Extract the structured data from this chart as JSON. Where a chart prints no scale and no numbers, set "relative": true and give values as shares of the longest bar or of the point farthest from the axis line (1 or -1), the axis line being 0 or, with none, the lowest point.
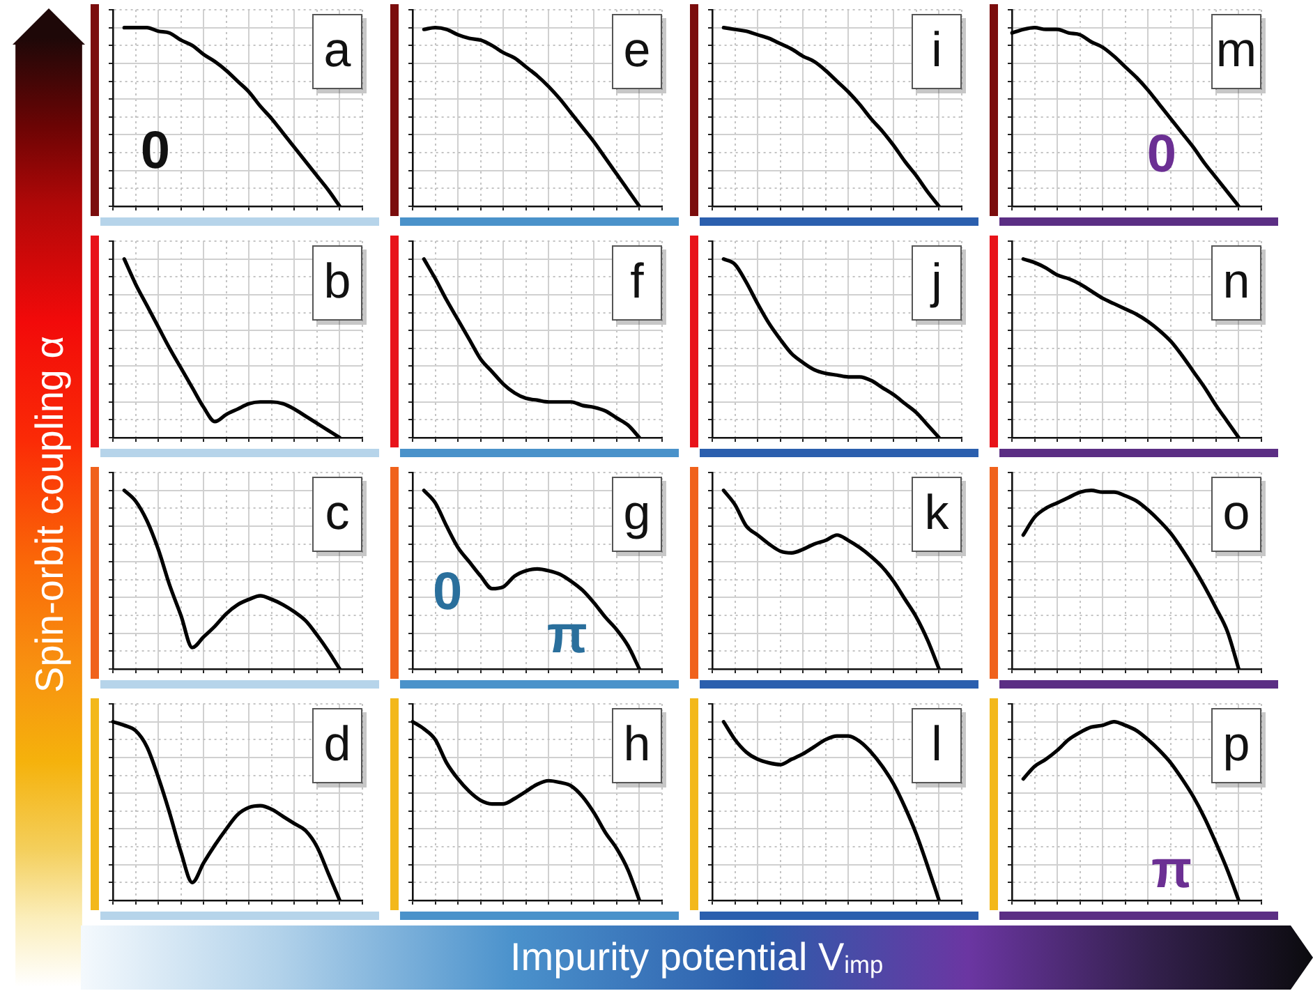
{
  "chart_data": [
    {
      "type": "line",
      "title": "a",
      "categories": [
        null,
        null,
        null,
        null,
        null,
        null,
        null,
        null,
        null,
        null,
        null,
        null,
        null,
        null,
        null,
        null,
        null,
        null,
        null,
        null,
        null,
        null,
        null
      ],
      "values": [
        null,
        1,
        1,
        1,
        0.98,
        0.97,
        0.93,
        0.9,
        0.85,
        0.81,
        0.76,
        0.7,
        0.64,
        0.56,
        0.49,
        0.41,
        0.33,
        0.25,
        0.17,
        0.09,
        0,
        null,
        null
      ],
      "color": "#000000",
      "relative": true,
      "grid": true,
      "annotations": [
        "0"
      ]
    },
    {
      "type": "line",
      "title": "e",
      "categories": [
        null,
        null,
        null,
        null,
        null,
        null,
        null,
        null,
        null,
        null,
        null,
        null,
        null,
        null,
        null,
        null,
        null,
        null,
        null,
        null,
        null,
        null,
        null
      ],
      "values": [
        null,
        0.99,
        1,
        0.99,
        0.96,
        0.94,
        0.93,
        0.9,
        0.86,
        0.83,
        0.78,
        0.73,
        0.67,
        0.6,
        0.52,
        0.44,
        0.36,
        0.27,
        0.18,
        0.09,
        0,
        null,
        null
      ],
      "color": "#000000",
      "relative": true,
      "grid": true
    },
    {
      "type": "line",
      "title": "i",
      "categories": [
        null,
        null,
        null,
        null,
        null,
        null,
        null,
        null,
        null,
        null,
        null,
        null,
        null,
        null,
        null,
        null,
        null,
        null,
        null,
        null,
        null,
        null,
        null
      ],
      "values": [
        null,
        1,
        0.99,
        0.98,
        0.96,
        0.94,
        0.91,
        0.88,
        0.84,
        0.81,
        0.76,
        0.7,
        0.64,
        0.57,
        0.49,
        0.42,
        0.34,
        0.25,
        0.17,
        0.08,
        0,
        null,
        null
      ],
      "color": "#000000",
      "relative": true,
      "grid": true
    },
    {
      "type": "line",
      "title": "m",
      "categories": [
        null,
        null,
        null,
        null,
        null,
        null,
        null,
        null,
        null,
        null,
        null,
        null,
        null,
        null,
        null,
        null,
        null,
        null,
        null,
        null,
        null,
        null,
        null
      ],
      "values": [
        0.97,
        0.99,
        1,
        0.99,
        0.99,
        0.97,
        0.96,
        0.92,
        0.89,
        0.84,
        0.78,
        0.72,
        0.65,
        0.57,
        0.49,
        0.41,
        0.33,
        0.24,
        0.16,
        0.08,
        0,
        null,
        null
      ],
      "color": "#000000",
      "relative": true,
      "grid": true,
      "annotations": [
        "0"
      ]
    },
    {
      "type": "line",
      "title": "b",
      "categories": [
        null,
        null,
        null,
        null,
        null,
        null,
        null,
        null,
        null,
        null,
        null,
        null,
        null,
        null,
        null,
        null,
        null,
        null,
        null,
        null,
        null,
        null,
        null
      ],
      "values": [
        null,
        1,
        0.86,
        0.74,
        0.62,
        0.5,
        0.39,
        0.28,
        0.17,
        0.09,
        0.13,
        0.16,
        0.19,
        0.2,
        0.2,
        0.19,
        0.16,
        0.12,
        0.08,
        0.04,
        0,
        null,
        null
      ],
      "color": "#000000",
      "relative": true,
      "grid": true
    },
    {
      "type": "line",
      "title": "f",
      "categories": [
        null,
        null,
        null,
        null,
        null,
        null,
        null,
        null,
        null,
        null,
        null,
        null,
        null,
        null,
        null,
        null,
        null,
        null,
        null,
        null,
        null,
        null,
        null
      ],
      "values": [
        null,
        1,
        0.89,
        0.77,
        0.66,
        0.55,
        0.44,
        0.37,
        0.3,
        0.25,
        0.22,
        0.21,
        0.2,
        0.2,
        0.2,
        0.18,
        0.17,
        0.15,
        0.11,
        0.07,
        0,
        null,
        null
      ],
      "color": "#000000",
      "relative": true,
      "grid": true
    },
    {
      "type": "line",
      "title": "j",
      "categories": [
        null,
        null,
        null,
        null,
        null,
        null,
        null,
        null,
        null,
        null,
        null,
        null,
        null,
        null,
        null,
        null,
        null,
        null,
        null,
        null,
        null,
        null,
        null
      ],
      "values": [
        null,
        1,
        0.97,
        0.87,
        0.75,
        0.64,
        0.55,
        0.47,
        0.42,
        0.38,
        0.36,
        0.35,
        0.34,
        0.34,
        0.32,
        0.28,
        0.24,
        0.19,
        0.14,
        0.07,
        0,
        null,
        null
      ],
      "color": "#000000",
      "relative": true,
      "grid": true
    },
    {
      "type": "line",
      "title": "n",
      "categories": [
        null,
        null,
        null,
        null,
        null,
        null,
        null,
        null,
        null,
        null,
        null,
        null,
        null,
        null,
        null,
        null,
        null,
        null,
        null,
        null,
        null,
        null,
        null
      ],
      "values": [
        null,
        1,
        0.98,
        0.95,
        0.91,
        0.89,
        0.86,
        0.82,
        0.78,
        0.75,
        0.72,
        0.69,
        0.65,
        0.6,
        0.54,
        0.46,
        0.37,
        0.28,
        0.18,
        0.09,
        0,
        null,
        null
      ],
      "color": "#000000",
      "relative": true,
      "grid": true
    },
    {
      "type": "line",
      "title": "c",
      "categories": [
        null,
        null,
        null,
        null,
        null,
        null,
        null,
        null,
        null,
        null,
        null,
        null,
        null,
        null,
        null,
        null,
        null,
        null,
        null,
        null,
        null,
        null,
        null
      ],
      "values": [
        null,
        1,
        0.94,
        0.83,
        0.67,
        0.47,
        0.3,
        0.12,
        0.18,
        0.24,
        0.31,
        0.36,
        0.39,
        0.41,
        0.39,
        0.36,
        0.32,
        0.27,
        0.19,
        0.1,
        0,
        null,
        null
      ],
      "color": "#000000",
      "relative": true,
      "grid": true
    },
    {
      "type": "line",
      "title": "g",
      "categories": [
        null,
        null,
        null,
        null,
        null,
        null,
        null,
        null,
        null,
        null,
        null,
        null,
        null,
        null,
        null,
        null,
        null,
        null,
        null,
        null,
        null,
        null,
        null
      ],
      "values": [
        null,
        1,
        0.93,
        0.8,
        0.68,
        0.6,
        0.52,
        0.45,
        0.46,
        0.52,
        0.55,
        0.56,
        0.55,
        0.53,
        0.49,
        0.44,
        0.37,
        0.29,
        0.22,
        0.13,
        0,
        null,
        null
      ],
      "color": "#000000",
      "relative": true,
      "grid": true,
      "annotations": [
        "0",
        "π"
      ]
    },
    {
      "type": "line",
      "title": "k",
      "categories": [
        null,
        null,
        null,
        null,
        null,
        null,
        null,
        null,
        null,
        null,
        null,
        null,
        null,
        null,
        null,
        null,
        null,
        null,
        null,
        null,
        null,
        null,
        null
      ],
      "values": [
        null,
        1,
        0.92,
        0.8,
        0.75,
        0.7,
        0.66,
        0.65,
        0.67,
        0.7,
        0.72,
        0.75,
        0.72,
        0.68,
        0.63,
        0.57,
        0.49,
        0.39,
        0.29,
        0.16,
        0,
        null,
        null
      ],
      "color": "#000000",
      "relative": true,
      "grid": true
    },
    {
      "type": "line",
      "title": "o",
      "categories": [
        null,
        null,
        null,
        null,
        null,
        null,
        null,
        null,
        null,
        null,
        null,
        null,
        null,
        null,
        null,
        null,
        null,
        null,
        null,
        null,
        null,
        null,
        null
      ],
      "values": [
        null,
        0.75,
        0.85,
        0.9,
        0.93,
        0.96,
        0.99,
        1,
        0.99,
        0.99,
        0.97,
        0.94,
        0.89,
        0.83,
        0.76,
        0.67,
        0.57,
        0.46,
        0.34,
        0.21,
        0,
        null,
        null
      ],
      "color": "#000000",
      "relative": true,
      "grid": true
    },
    {
      "type": "line",
      "title": "d",
      "categories": [
        null,
        null,
        null,
        null,
        null,
        null,
        null,
        null,
        null,
        null,
        null,
        null,
        null,
        null,
        null,
        null,
        null,
        null,
        null,
        null,
        null,
        null,
        null
      ],
      "values": [
        1,
        0.98,
        0.95,
        0.86,
        0.69,
        0.49,
        0.27,
        0.1,
        0.21,
        0.31,
        0.4,
        0.48,
        0.52,
        0.53,
        0.51,
        0.47,
        0.43,
        0.39,
        0.3,
        0.15,
        0,
        null,
        null
      ],
      "color": "#000000",
      "relative": true,
      "grid": true
    },
    {
      "type": "line",
      "title": "h",
      "categories": [
        null,
        null,
        null,
        null,
        null,
        null,
        null,
        null,
        null,
        null,
        null,
        null,
        null,
        null,
        null,
        null,
        null,
        null,
        null,
        null,
        null,
        null,
        null
      ],
      "values": [
        1,
        0.96,
        0.9,
        0.77,
        0.68,
        0.61,
        0.56,
        0.54,
        0.54,
        0.57,
        0.61,
        0.65,
        0.67,
        0.66,
        0.64,
        0.58,
        0.49,
        0.38,
        0.29,
        0.17,
        0,
        null,
        null
      ],
      "color": "#000000",
      "relative": true,
      "grid": true
    },
    {
      "type": "line",
      "title": "l",
      "categories": [
        null,
        null,
        null,
        null,
        null,
        null,
        null,
        null,
        null,
        null,
        null,
        null,
        null,
        null,
        null,
        null,
        null,
        null,
        null,
        null,
        null,
        null,
        null
      ],
      "values": [
        null,
        1,
        0.9,
        0.83,
        0.79,
        0.77,
        0.76,
        0.79,
        0.82,
        0.86,
        0.9,
        0.92,
        0.92,
        0.89,
        0.83,
        0.75,
        0.65,
        0.52,
        0.37,
        0.19,
        0,
        null,
        null
      ],
      "color": "#000000",
      "relative": true,
      "grid": true
    },
    {
      "type": "line",
      "title": "p",
      "categories": [
        null,
        null,
        null,
        null,
        null,
        null,
        null,
        null,
        null,
        null,
        null,
        null,
        null,
        null,
        null,
        null,
        null,
        null,
        null,
        null,
        null,
        null,
        null
      ],
      "values": [
        null,
        0.68,
        0.75,
        0.79,
        0.84,
        0.9,
        0.94,
        0.97,
        0.98,
        1,
        0.98,
        0.95,
        0.9,
        0.84,
        0.77,
        0.68,
        0.58,
        0.46,
        0.32,
        0.17,
        0,
        null,
        null
      ],
      "color": "#000000",
      "relative": true,
      "grid": true,
      "annotations": [
        "π"
      ]
    },
    {
      "type": "other",
      "xlabel": "Impurity potential V$_{imp}$",
      "ylabel": "Spin-orbit coupling α"
    }
  ]
}
